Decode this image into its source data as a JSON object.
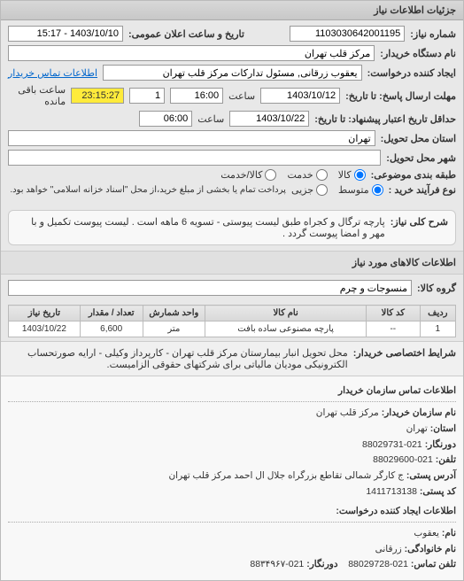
{
  "panel": {
    "title": "جزئیات اطلاعات نیاز"
  },
  "header": {
    "request_no_label": "شماره نیاز:",
    "request_no": "1103030642001195",
    "announce_label": "تاریخ و ساعت اعلان عمومی:",
    "announce_value": "1403/10/10 - 15:17",
    "buyer_device_label": "نام دستگاه خریدار:",
    "buyer_device": "مرکز قلب تهران",
    "creator_label": "ایجاد کننده درخواست:",
    "creator": "یعقوب زرقانی, مسئول تدارکات مرکز قلب تهران",
    "buyer_contact_link": "اطلاعات تماس خریدار",
    "send_deadline_label": "مهلت ارسال پاسخ: تا تاریخ:",
    "send_date": "1403/10/12",
    "time_label": "ساعت",
    "send_time": "16:00",
    "send_count": "1",
    "remaining_label": "ساعت باقی مانده",
    "remaining_time": "23:15:27",
    "validity_label": "حداقل تاریخ اعتبار پیشنهاد: تا تاریخ:",
    "validity_date": "1403/10/22",
    "validity_time": "06:00",
    "delivery_province_label": "استان محل تحویل:",
    "delivery_province": "تهران",
    "delivery_city_label": "شهر محل تحویل:",
    "delivery_city": "",
    "classification_label": "طبقه بندی موضوعی:",
    "radio_goods": "کالا",
    "radio_service": "خدمت",
    "radio_both": "کالا/خدمت",
    "process_label": "نوع فرآیند خرید :",
    "radio_medium": "متوسط",
    "radio_small": "جزیی",
    "process_note": "پرداخت تمام یا بخشی از مبلغ خرید،از محل \"اسناد خزانه اسلامی\" خواهد بود."
  },
  "description": {
    "label": "شرح کلی نیاز:",
    "text": "پارچه ترگال و کجراه طبق لیست پیوستی - تسویه 6 ماهه است . لیست پیوست تکمیل و با مهر و امضا پیوست گردد ."
  },
  "goods_section": {
    "title": "اطلاعات کالاهای مورد نیاز",
    "group_label": "گروه کالا:",
    "group_value": "منسوجات و چرم"
  },
  "table": {
    "columns": [
      "ردیف",
      "کد کالا",
      "نام کالا",
      "واحد شمارش",
      "تعداد / مقدار",
      "تاریخ نیاز"
    ],
    "col_widths": [
      "8%",
      "12%",
      "36%",
      "14%",
      "14%",
      "16%"
    ],
    "rows": [
      [
        "1",
        "--",
        "پارچه مصنوعی ساده بافت",
        "متر",
        "6,600",
        "1403/10/22"
      ]
    ]
  },
  "buyer_terms": {
    "label": "شرایط اختصاصی خریدار:",
    "text": "محل تحویل انبار بیمارستان مرکز قلب تهران - کارپرداز وکیلی - ارایه صورتحساب الکترونیکی مودیان مالیاتی برای شرکتهای حقوقی الزامیست."
  },
  "contact": {
    "section_title": "اطلاعات تماس سازمان خریدار",
    "org_name_label": "نام سازمان خریدار:",
    "org_name": "مرکز قلب تهران",
    "province_label": "استان:",
    "province": "تهران",
    "fax_label": "دورنگار:",
    "fax": "021-88029731",
    "phone_label": "تلفن:",
    "phone": "021-88029600",
    "address_label": "آدرس پستی:",
    "address": "ج کارگر شمالی تقاطع بزرگراه جلال ال احمد مرکز قلب تهران",
    "postal_label": "کد پستی:",
    "postal": "1411713138",
    "creator_section": "اطلاعات ایجاد کننده درخواست:",
    "name_label": "نام:",
    "name": "یعقوب",
    "lastname_label": "نام خانوادگی:",
    "lastname": "زرقانی",
    "contact_phone_label": "تلفن تماس:",
    "contact_phone": "021-88029728",
    "fax2_label": "دورنگار:",
    "fax2": "021-88۳۴۹۶۷"
  }
}
